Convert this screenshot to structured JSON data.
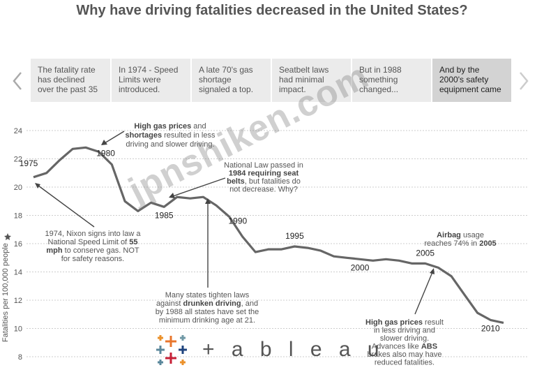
{
  "title": "Why have driving fatalities decreased in the United States?",
  "story_points": [
    {
      "text": "The fatality rate has declined over the past 35"
    },
    {
      "text": "In 1974 - Speed Limits were introduced."
    },
    {
      "text": "A late 70's gas shortage signaled a top."
    },
    {
      "text": "Seatbelt laws had minimal impact."
    },
    {
      "text": "But in 1988 something changed..."
    },
    {
      "text": "And by the 2000's safety equipment came"
    }
  ],
  "nav": {
    "prev_icon": "chevron-left-icon",
    "next_icon": "chevron-right-icon"
  },
  "watermark": "jpnshiken.com",
  "logo": {
    "text": "+ a b l e a u"
  },
  "colors": {
    "line": "#666666",
    "grid": "#cccccc",
    "active_tab": "#d3d3d3",
    "tab": "#ebebeb",
    "logo_blue": "#1f77b4",
    "logo_orange": "#f28e2b"
  },
  "chart_data": {
    "type": "line",
    "ylabel": "Fatalities per 100,000 people",
    "ylim": [
      8,
      24
    ],
    "yticks": [
      8,
      10,
      12,
      14,
      16,
      18,
      20,
      22,
      24
    ],
    "grid": true,
    "x": [
      1975,
      1976,
      1977,
      1978,
      1979,
      1980,
      1981,
      1982,
      1983,
      1984,
      1985,
      1986,
      1987,
      1988,
      1989,
      1990,
      1991,
      1992,
      1993,
      1994,
      1995,
      1996,
      1997,
      1998,
      1999,
      2000,
      2001,
      2002,
      2003,
      2004,
      2005,
      2006,
      2007,
      2008,
      2009,
      2010,
      2011
    ],
    "y": [
      20.7,
      21.0,
      21.9,
      22.7,
      22.8,
      22.5,
      21.6,
      19.0,
      18.3,
      18.9,
      18.6,
      19.3,
      19.2,
      19.3,
      18.7,
      17.9,
      16.5,
      15.4,
      15.6,
      15.6,
      15.8,
      15.7,
      15.5,
      15.1,
      15.0,
      14.9,
      14.8,
      14.9,
      14.8,
      14.6,
      14.6,
      14.3,
      13.7,
      12.4,
      11.1,
      10.6,
      10.4
    ],
    "point_labels": [
      {
        "year": 1975,
        "text": "1975"
      },
      {
        "year": 1980,
        "text": "1980"
      },
      {
        "year": 1985,
        "text": "1985"
      },
      {
        "year": 1990,
        "text": "1990"
      },
      {
        "year": 1995,
        "text": "1995"
      },
      {
        "year": 2000,
        "text": "2000"
      },
      {
        "year": 2005,
        "text": "2005"
      },
      {
        "year": 2010,
        "text": "2010"
      }
    ],
    "annotations": [
      {
        "id": "gas",
        "lines": [
          "**High gas prices** and",
          "**shortages** resulted in less",
          "driving and slower driving."
        ]
      },
      {
        "id": "seat",
        "lines": [
          "National Law passed in",
          "**1984 requiring seat**",
          "**belts**, but fatalities do",
          "not decrease. Why?"
        ]
      },
      {
        "id": "nixon",
        "lines": [
          "1974, Nixon signs into law a",
          "National Speed Limit of **55**",
          "**mph** to conserve gas. NOT",
          "for safety reasons."
        ]
      },
      {
        "id": "drunk",
        "lines": [
          "Many states tighten laws",
          "against **drunken driving**, and",
          "by 1988 all states have set the",
          "minimum drinking age at 21."
        ]
      },
      {
        "id": "airbag",
        "lines": [
          "**Airbag** usage",
          "reaches 74% in **2005**"
        ]
      },
      {
        "id": "gas2",
        "lines": [
          "**High gas prices** result",
          "in less driving and",
          "slower driving.",
          "Advances like **ABS**",
          "brakes also may have",
          "reduced fatalities."
        ]
      }
    ]
  }
}
